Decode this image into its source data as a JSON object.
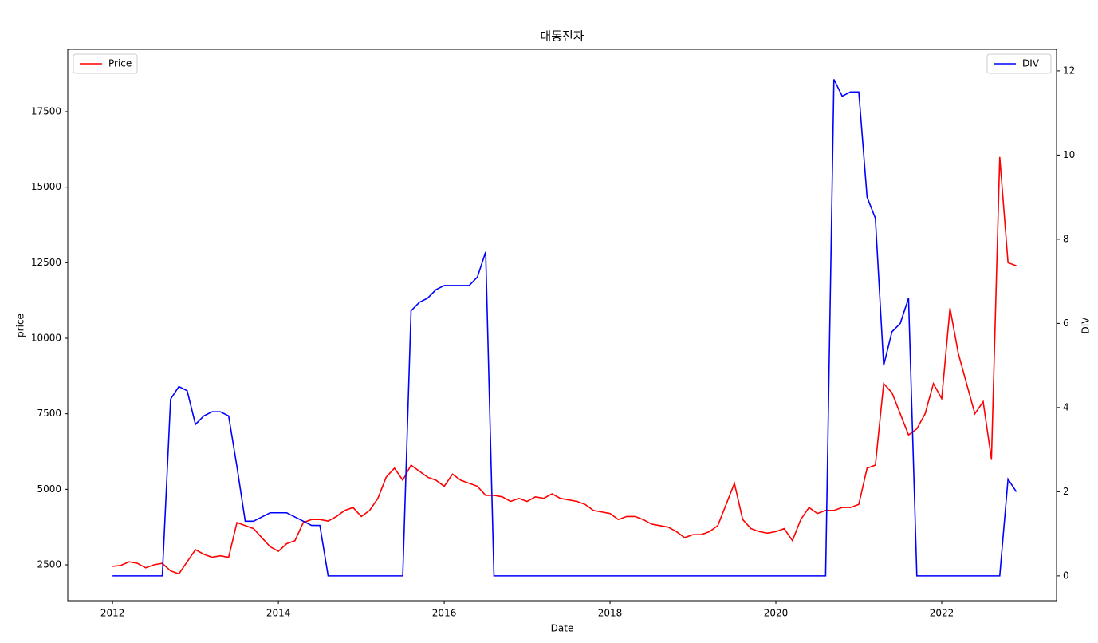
{
  "chart_data": {
    "type": "line",
    "title": "대동전자",
    "x_label": "Date",
    "y_label": "price",
    "y2_label": "DIV",
    "x": [
      2012.0,
      2012.1,
      2012.2,
      2012.3,
      2012.4,
      2012.5,
      2012.6,
      2012.7,
      2012.8,
      2012.9,
      2013.0,
      2013.1,
      2013.2,
      2013.3,
      2013.4,
      2013.5,
      2013.6,
      2013.7,
      2013.8,
      2013.9,
      2014.0,
      2014.1,
      2014.2,
      2014.3,
      2014.4,
      2014.5,
      2014.6,
      2014.7,
      2014.8,
      2014.9,
      2015.0,
      2015.1,
      2015.2,
      2015.3,
      2015.4,
      2015.5,
      2015.6,
      2015.7,
      2015.8,
      2015.9,
      2016.0,
      2016.1,
      2016.2,
      2016.3,
      2016.4,
      2016.5,
      2016.6,
      2016.7,
      2016.8,
      2016.9,
      2017.0,
      2017.1,
      2017.2,
      2017.3,
      2017.4,
      2017.5,
      2017.6,
      2017.7,
      2017.8,
      2017.9,
      2018.0,
      2018.1,
      2018.2,
      2018.3,
      2018.4,
      2018.5,
      2018.6,
      2018.7,
      2018.8,
      2018.9,
      2019.0,
      2019.1,
      2019.2,
      2019.3,
      2019.4,
      2019.5,
      2019.6,
      2019.7,
      2019.8,
      2019.9,
      2020.0,
      2020.1,
      2020.2,
      2020.3,
      2020.4,
      2020.5,
      2020.6,
      2020.7,
      2020.8,
      2020.9,
      2021.0,
      2021.1,
      2021.2,
      2021.3,
      2021.4,
      2021.5,
      2021.6,
      2021.7,
      2021.8,
      2021.9,
      2022.0,
      2022.1,
      2022.2,
      2022.3,
      2022.4,
      2022.5,
      2022.6,
      2022.7,
      2022.8,
      2022.9
    ],
    "series": [
      {
        "name": "Price",
        "color": "#ff0000",
        "axis": "y",
        "values": [
          2450,
          2480,
          2600,
          2550,
          2400,
          2500,
          2550,
          2300,
          2200,
          2600,
          3000,
          2850,
          2750,
          2800,
          2750,
          3900,
          3800,
          3700,
          3400,
          3100,
          2950,
          3200,
          3300,
          3900,
          4000,
          4000,
          3950,
          4100,
          4300,
          4400,
          4100,
          4300,
          4700,
          5400,
          5700,
          5300,
          5800,
          5600,
          5400,
          5300,
          5100,
          5500,
          5300,
          5200,
          5100,
          4800,
          4800,
          4750,
          4600,
          4700,
          4600,
          4750,
          4700,
          4850,
          4700,
          4650,
          4600,
          4500,
          4300,
          4250,
          4200,
          4000,
          4100,
          4100,
          4000,
          3850,
          3800,
          3750,
          3600,
          3400,
          3500,
          3500,
          3600,
          3800,
          4500,
          5200,
          4000,
          3700,
          3600,
          3550,
          3600,
          3700,
          3300,
          4000,
          4400,
          4200,
          4300,
          4300,
          4400,
          4400,
          4500,
          5700,
          5800,
          8500,
          8200,
          7500,
          6800,
          7000,
          7500,
          8500,
          8000,
          11000,
          9500,
          8500,
          7500,
          7900,
          6000,
          16000,
          12500,
          12400
        ]
      },
      {
        "name": "DIV",
        "color": "#0000ff",
        "axis": "y2",
        "values": [
          0,
          0,
          0,
          0,
          0,
          0,
          0,
          4.2,
          4.5,
          4.4,
          3.6,
          3.8,
          3.9,
          3.9,
          3.8,
          2.6,
          1.3,
          1.3,
          1.4,
          1.5,
          1.5,
          1.5,
          1.4,
          1.3,
          1.2,
          1.2,
          0,
          0,
          0,
          0,
          0,
          0,
          0,
          0,
          0,
          0,
          6.3,
          6.5,
          6.6,
          6.8,
          6.9,
          6.9,
          6.9,
          6.9,
          7.1,
          7.7,
          0,
          0,
          0,
          0,
          0,
          0,
          0,
          0,
          0,
          0,
          0,
          0,
          0,
          0,
          0,
          0,
          0,
          0,
          0,
          0,
          0,
          0,
          0,
          0,
          0,
          0,
          0,
          0,
          0,
          0,
          0,
          0,
          0,
          0,
          0,
          0,
          0,
          0,
          0,
          0,
          0,
          11.8,
          11.4,
          11.5,
          11.5,
          9.0,
          8.5,
          5.0,
          5.8,
          6.0,
          6.6,
          0,
          0,
          0,
          0,
          0,
          0,
          0,
          0,
          0,
          0,
          0,
          2.3,
          2.0
        ]
      }
    ],
    "xlim": [
      2011.46,
      2023.385
    ],
    "xticks": [
      2012,
      2014,
      2016,
      2018,
      2020,
      2022
    ],
    "ylim": [
      1312,
      19560
    ],
    "yticks": [
      2500,
      5000,
      7500,
      10000,
      12500,
      15000,
      17500
    ],
    "y2lim": [
      -0.59,
      12.51
    ],
    "y2ticks": [
      0,
      2,
      4,
      6,
      8,
      10,
      12
    ]
  }
}
